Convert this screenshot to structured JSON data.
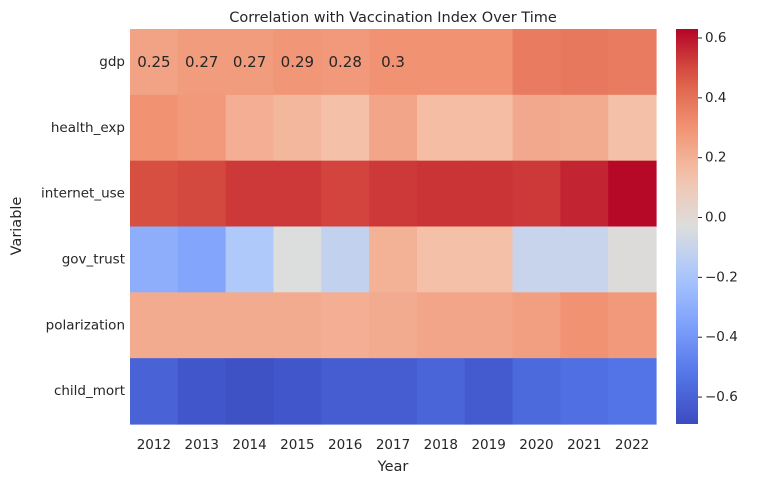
{
  "chart_data": {
    "type": "heatmap",
    "title": "Correlation with Vaccination Index Over Time",
    "xlabel": "Year",
    "ylabel": "Variable",
    "x": [
      "2012",
      "2013",
      "2014",
      "2015",
      "2016",
      "2017",
      "2018",
      "2019",
      "2020",
      "2021",
      "2022"
    ],
    "y": [
      "gdp",
      "health_exp",
      "internet_use",
      "gov_trust",
      "polarization",
      "child_mort"
    ],
    "values": [
      [
        0.25,
        0.27,
        0.27,
        0.29,
        0.28,
        0.3,
        0.3,
        0.3,
        0.37,
        0.38,
        0.37
      ],
      [
        0.3,
        0.28,
        0.21,
        0.18,
        0.15,
        0.24,
        0.16,
        0.16,
        0.23,
        0.22,
        0.15
      ],
      [
        0.49,
        0.5,
        0.53,
        0.53,
        0.51,
        0.53,
        0.54,
        0.54,
        0.53,
        0.57,
        0.62
      ],
      [
        -0.3,
        -0.34,
        -0.18,
        -0.03,
        -0.12,
        0.2,
        0.15,
        0.15,
        -0.1,
        -0.1,
        -0.02
      ],
      [
        0.22,
        0.22,
        0.22,
        0.22,
        0.21,
        0.22,
        0.24,
        0.24,
        0.26,
        0.3,
        0.28
      ],
      [
        -0.6,
        -0.65,
        -0.67,
        -0.65,
        -0.62,
        -0.62,
        -0.59,
        -0.63,
        -0.57,
        -0.55,
        -0.53
      ]
    ],
    "annotations": [
      {
        "row": 0,
        "col": 0,
        "text": "0.25"
      },
      {
        "row": 0,
        "col": 1,
        "text": "0.27"
      },
      {
        "row": 0,
        "col": 2,
        "text": "0.27"
      },
      {
        "row": 0,
        "col": 3,
        "text": "0.29"
      },
      {
        "row": 0,
        "col": 4,
        "text": "0.28"
      },
      {
        "row": 0,
        "col": 5,
        "text": "0.3"
      }
    ],
    "colormap": "coolwarm",
    "colorbar": {
      "range": [
        -0.69,
        0.63
      ],
      "ticks": [
        -0.6,
        -0.4,
        -0.2,
        0.0,
        0.2,
        0.4,
        0.6
      ],
      "tick_labels": [
        "−0.6",
        "−0.4",
        "−0.2",
        "0.0",
        "0.2",
        "0.4",
        "0.6"
      ]
    }
  }
}
